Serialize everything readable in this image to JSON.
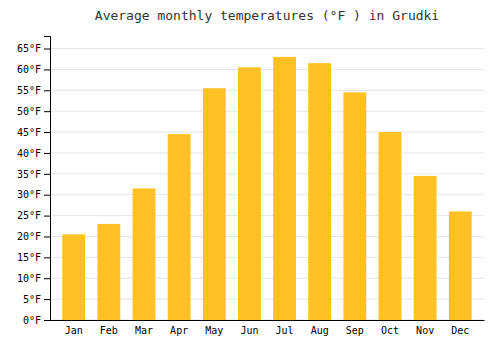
{
  "chart_data": {
    "type": "bar",
    "title": "Average monthly temperatures (°F ) in Grudki",
    "categories": [
      "Jan",
      "Feb",
      "Mar",
      "Apr",
      "May",
      "Jun",
      "Jul",
      "Aug",
      "Sep",
      "Oct",
      "Nov",
      "Dec"
    ],
    "values": [
      20.5,
      23.0,
      31.5,
      44.5,
      55.5,
      60.5,
      63.0,
      61.5,
      54.5,
      45.0,
      34.5,
      26.0
    ],
    "color": "#FFC125",
    "ylim": [
      0,
      68
    ],
    "yticks": [
      {
        "value": 0,
        "label": "0°F"
      },
      {
        "value": 5,
        "label": "5°F"
      },
      {
        "value": 10,
        "label": "10°F"
      },
      {
        "value": 15,
        "label": "15°F"
      },
      {
        "value": 20,
        "label": "20°F"
      },
      {
        "value": 25,
        "label": "25°F"
      },
      {
        "value": 30,
        "label": "30°F"
      },
      {
        "value": 35,
        "label": "35°F"
      },
      {
        "value": 40,
        "label": "40°F"
      },
      {
        "value": 45,
        "label": "45°F"
      },
      {
        "value": 50,
        "label": "50°F"
      },
      {
        "value": 55,
        "label": "55°F"
      },
      {
        "value": 60,
        "label": "60°F"
      },
      {
        "value": 65,
        "label": "65°F"
      }
    ],
    "grid": true
  }
}
